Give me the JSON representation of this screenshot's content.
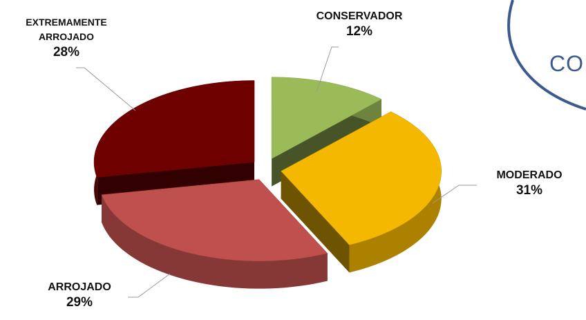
{
  "chart_data": {
    "type": "pie3d",
    "categories": [
      "CONSERVADOR",
      "MODERADO",
      "ARROJADO",
      "EXTREMAMENTE ARROJADO"
    ],
    "values": [
      12,
      31,
      29,
      28
    ],
    "value_labels": [
      "12%",
      "31%",
      "29%",
      "28%"
    ],
    "colors": [
      "#9bbb59",
      "#f5b800",
      "#c0504d",
      "#6e0000"
    ]
  },
  "background_text": "CO"
}
